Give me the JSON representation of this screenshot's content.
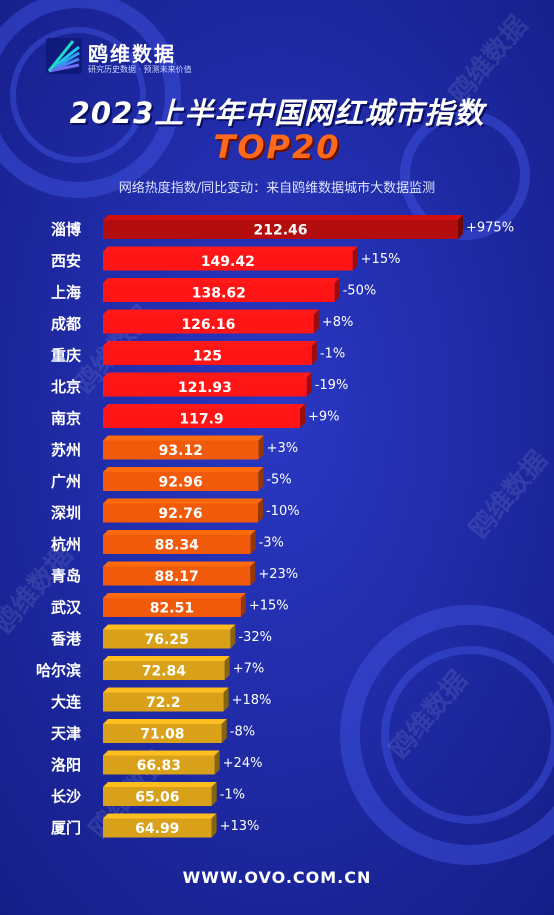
{
  "brand": {
    "name": "鸥维数据",
    "tagline": "研究历史数据 · 预测未来价值"
  },
  "title": "2023上半年中国网红城市指数",
  "subtitle": "TOP20",
  "note": "网络热度指数/同比变动：来自鸥维数据城市大数据监测",
  "footer": "WWW.OVO.COM.CN",
  "watermark": "鸥维数据",
  "colors": {
    "background": "#1f2aa8",
    "top1": "#b30d0d",
    "red": "#ff1515",
    "orange": "#f05a0a",
    "gold": "#d9a11a"
  },
  "chart_data": {
    "type": "bar",
    "orientation": "horizontal",
    "categories": [
      "淄博",
      "西安",
      "上海",
      "成都",
      "重庆",
      "北京",
      "南京",
      "苏州",
      "广州",
      "深圳",
      "杭州",
      "青岛",
      "武汉",
      "香港",
      "哈尔滨",
      "大连",
      "天津",
      "洛阳",
      "长沙",
      "厦门"
    ],
    "values": [
      212.46,
      149.42,
      138.62,
      126.16,
      125,
      121.93,
      117.9,
      93.12,
      92.96,
      92.76,
      88.34,
      88.17,
      82.51,
      76.25,
      72.84,
      72.2,
      71.08,
      66.83,
      65.06,
      64.99
    ],
    "value_labels": [
      "212.46",
      "149.42",
      "138.62",
      "126.16",
      "125",
      "121.93",
      "117.9",
      "93.12",
      "92.96",
      "92.76",
      "88.34",
      "88.17",
      "82.51",
      "76.25",
      "72.84",
      "72.2",
      "71.08",
      "66.83",
      "65.06",
      "64.99"
    ],
    "changes": [
      "+975%",
      "+15%",
      "-50%",
      "+8%",
      "-1%",
      "-19%",
      "+9%",
      "+3%",
      "-5%",
      "-10%",
      "-3%",
      "+23%",
      "+15%",
      "-32%",
      "+7%",
      "+18%",
      "-8%",
      "+24%",
      "-1%",
      "+13%"
    ],
    "tiers": [
      "top1",
      "red",
      "red",
      "red",
      "red",
      "red",
      "red",
      "orange",
      "orange",
      "orange",
      "orange",
      "orange",
      "orange",
      "gold",
      "gold",
      "gold",
      "gold",
      "gold",
      "gold",
      "gold"
    ],
    "xlim": [
      0,
      212.46
    ],
    "grid": false,
    "legend": "none"
  }
}
